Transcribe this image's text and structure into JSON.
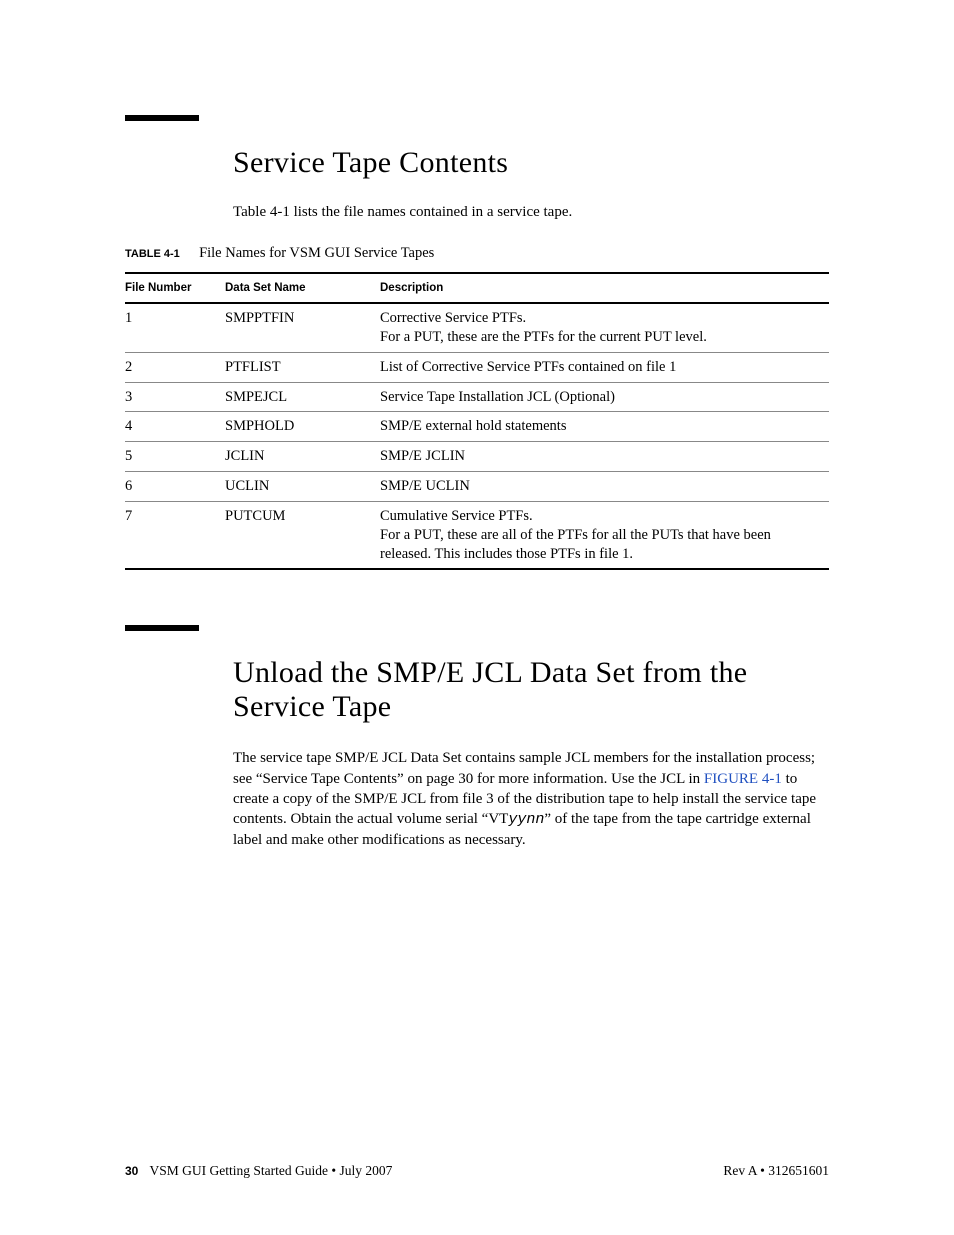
{
  "section1": {
    "heading": "Service Tape Contents",
    "intro": "Table 4-1 lists the file names contained in a service tape.",
    "tableCaptionLabel": "TABLE 4-1",
    "tableCaptionText": "File Names for VSM GUI Service Tapes",
    "columns": [
      "File Number",
      "Data Set Name",
      "Description"
    ],
    "rows": [
      {
        "num": "1",
        "name": "SMPPTFIN",
        "desc": "Corrective Service PTFs.\nFor a PUT, these are the PTFs for the current PUT level."
      },
      {
        "num": "2",
        "name": "PTFLIST",
        "desc": "List of Corrective Service PTFs contained on file 1"
      },
      {
        "num": "3",
        "name": "SMPEJCL",
        "desc": "Service Tape Installation JCL (Optional)"
      },
      {
        "num": "4",
        "name": "SMPHOLD",
        "desc": "SMP/E external hold statements"
      },
      {
        "num": "5",
        "name": "JCLIN",
        "desc": "SMP/E JCLIN"
      },
      {
        "num": "6",
        "name": "UCLIN",
        "desc": "SMP/E UCLIN"
      },
      {
        "num": "7",
        "name": "PUTCUM",
        "desc": "Cumulative Service PTFs.\nFor a PUT, these are all of the PTFs for all the PUTs that have been released. This includes those PTFs in file 1."
      }
    ]
  },
  "section2": {
    "heading": "Unload the SMP/E JCL Data Set from the Service Tape",
    "para_before_ref": "The service tape SMP/E JCL Data Set contains sample JCL members for the installation process; see “Service Tape Contents” on page 30 for more information. Use the JCL in ",
    "figure_ref": "FIGURE 4-1",
    "para_mid": " to create a copy of the SMP/E JCL from file 3 of the distribution tape to help install the service tape contents. Obtain the actual volume serial “VT",
    "vt_italic": "yynn",
    "para_after": "” of the tape from the tape cartridge external label and make other modifications as necessary."
  },
  "footer": {
    "pageNum": "30",
    "leftText": "VSM GUI Getting Started Guide • July 2007",
    "rightText": "Rev A • 312651601"
  }
}
